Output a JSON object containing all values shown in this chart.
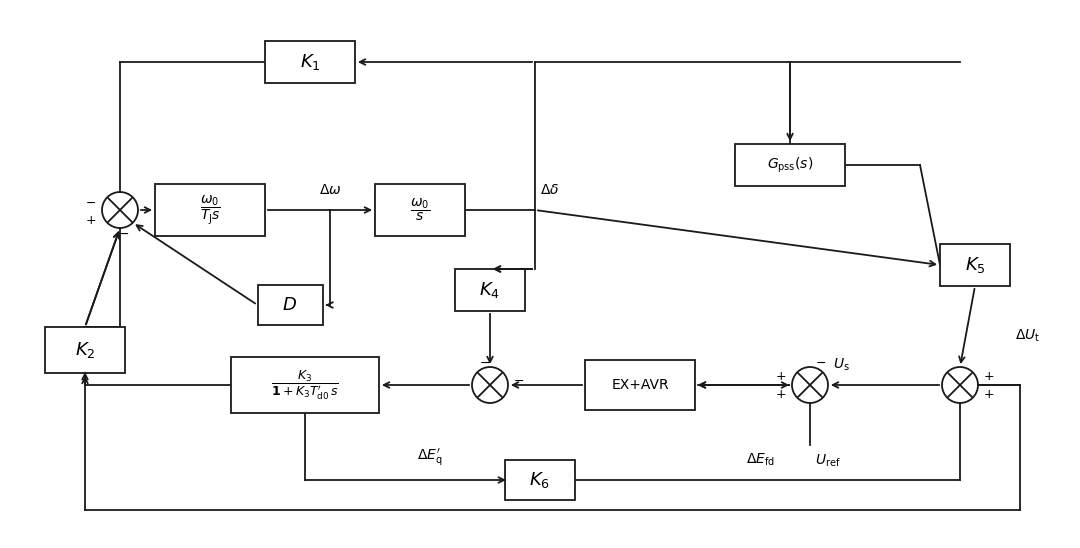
{
  "bg_color": "#ffffff",
  "line_color": "#1a1a1a",
  "lw": 1.3,
  "fig_width": 10.8,
  "fig_height": 5.48,
  "dpi": 100
}
